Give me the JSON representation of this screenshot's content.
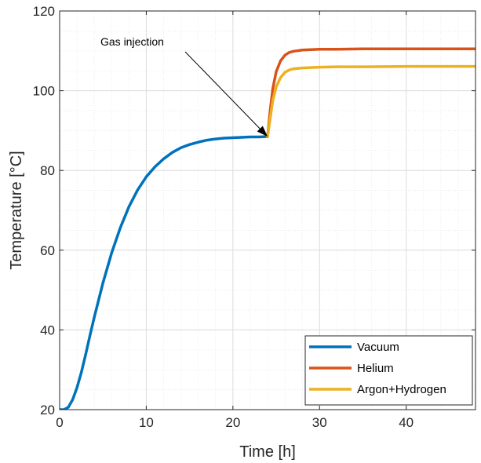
{
  "chart_data": {
    "type": "line",
    "xlabel": "Time [h]",
    "ylabel": "Temperature [°C]",
    "xlim": [
      0,
      48
    ],
    "ylim": [
      20,
      120
    ],
    "x_ticks": [
      0,
      10,
      20,
      30,
      40
    ],
    "y_ticks": [
      20,
      40,
      60,
      80,
      100,
      120
    ],
    "grid": "major and minor",
    "legend_position": "bottom-right",
    "annotation": {
      "text": "Gas injection",
      "x": 24,
      "y": 88.5
    },
    "series": [
      {
        "name": "Vacuum",
        "color": "#0072BD",
        "x": [
          0,
          0.5,
          1,
          1.5,
          2,
          2.5,
          3,
          3.5,
          4,
          5,
          6,
          7,
          8,
          9,
          10,
          11,
          12,
          13,
          14,
          15,
          16,
          17,
          18,
          19,
          20,
          21,
          22,
          23,
          24
        ],
        "y": [
          20,
          20,
          20.6,
          22.5,
          25.5,
          29.3,
          33.8,
          38.6,
          43.2,
          51.8,
          59.3,
          65.6,
          70.9,
          75.1,
          78.4,
          80.9,
          82.9,
          84.5,
          85.7,
          86.5,
          87.1,
          87.6,
          87.9,
          88.1,
          88.2,
          88.3,
          88.4,
          88.4,
          88.5
        ]
      },
      {
        "name": "Helium",
        "color": "#D95319",
        "x": [
          24,
          24.3,
          24.6,
          25,
          25.5,
          26,
          26.5,
          27,
          28,
          29,
          30,
          32,
          35,
          40,
          45,
          48
        ],
        "y": [
          88.5,
          95,
          100.5,
          104.8,
          107.5,
          108.9,
          109.6,
          109.9,
          110.2,
          110.3,
          110.4,
          110.4,
          110.5,
          110.5,
          110.5,
          110.5
        ]
      },
      {
        "name": "Argon+Hydrogen",
        "color": "#EDB120",
        "x": [
          24,
          24.3,
          24.6,
          25,
          25.5,
          26,
          26.5,
          27,
          28,
          29,
          30,
          32,
          35,
          40,
          45,
          48
        ],
        "y": [
          88.5,
          93,
          97.5,
          101,
          103.3,
          104.6,
          105.2,
          105.5,
          105.7,
          105.8,
          105.9,
          106,
          106,
          106.1,
          106.1,
          106.1
        ]
      }
    ]
  }
}
